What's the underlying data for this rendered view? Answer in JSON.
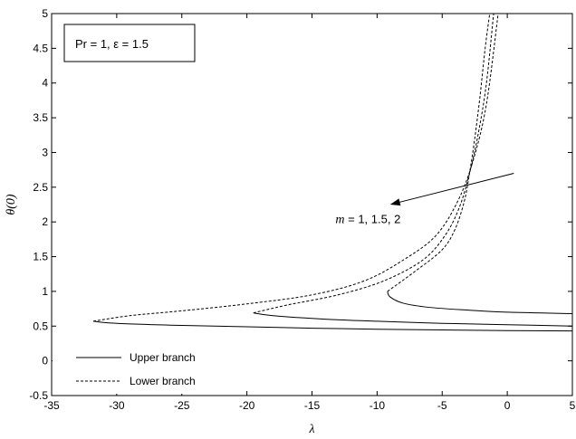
{
  "chart_data": {
    "type": "line",
    "xlabel": "λ",
    "ylabel": "θ(0)",
    "xlim": [
      -35,
      5
    ],
    "ylim": [
      -0.5,
      5
    ],
    "xticks": [
      -35,
      -30,
      -25,
      -20,
      -15,
      -10,
      -5,
      0,
      5
    ],
    "yticks": [
      -0.5,
      0,
      0.5,
      1,
      1.5,
      2,
      2.5,
      3,
      3.5,
      4,
      4.5,
      5
    ],
    "xtick_labels": [
      "-35",
      "-30",
      "-25",
      "-20",
      "-15",
      "-10",
      "-5",
      "0",
      "5"
    ],
    "ytick_labels": [
      "-0.5",
      "0",
      "0.5",
      "1",
      "1.5",
      "2",
      "2.5",
      "3",
      "3.5",
      "4",
      "4.5",
      "5"
    ],
    "grid": false,
    "legend_position": "bottom-left",
    "info_box": "Pr = 1, ε = 1.5",
    "annotation": {
      "text": "m = 1, 1.5, 2",
      "text_prefix": "m",
      "text_rest": " = 1, 1.5, 2",
      "arrow_from": [
        0.5,
        2.7
      ],
      "arrow_to": [
        -9,
        2.25
      ],
      "text_at": [
        -13.2,
        1.98
      ]
    },
    "legend": [
      {
        "label": "Upper branch",
        "style": "solid"
      },
      {
        "label": "Lower branch",
        "style": "dashed"
      }
    ],
    "series": [
      {
        "m": 1,
        "branch": "upper",
        "style": "solid",
        "points": [
          [
            -9.2,
            1.0
          ],
          [
            -9.0,
            0.92
          ],
          [
            -8.0,
            0.83
          ],
          [
            -6.0,
            0.77
          ],
          [
            -3.0,
            0.73
          ],
          [
            0.0,
            0.7
          ],
          [
            5.0,
            0.68
          ]
        ]
      },
      {
        "m": 1,
        "branch": "lower",
        "style": "dashed",
        "points": [
          [
            -9.2,
            1.0
          ],
          [
            -7.0,
            1.3
          ],
          [
            -5.0,
            1.6
          ],
          [
            -4.0,
            1.9
          ],
          [
            -3.3,
            2.3
          ],
          [
            -2.9,
            2.7
          ],
          [
            -2.5,
            3.2
          ],
          [
            -2.1,
            3.8
          ],
          [
            -1.7,
            4.5
          ],
          [
            -1.35,
            5.0
          ]
        ]
      },
      {
        "m": 1.5,
        "branch": "upper",
        "style": "solid",
        "points": [
          [
            -19.5,
            0.69
          ],
          [
            -18.0,
            0.65
          ],
          [
            -14.0,
            0.6
          ],
          [
            -10.0,
            0.57
          ],
          [
            -5.0,
            0.54
          ],
          [
            0.0,
            0.52
          ],
          [
            5.0,
            0.5
          ]
        ]
      },
      {
        "m": 1.5,
        "branch": "lower",
        "style": "dashed",
        "points": [
          [
            -19.5,
            0.69
          ],
          [
            -17.0,
            0.8
          ],
          [
            -13.0,
            0.95
          ],
          [
            -9.5,
            1.15
          ],
          [
            -6.5,
            1.45
          ],
          [
            -4.8,
            1.8
          ],
          [
            -3.7,
            2.2
          ],
          [
            -2.9,
            2.7
          ],
          [
            -2.2,
            3.3
          ],
          [
            -1.6,
            4.0
          ],
          [
            -1.05,
            5.0
          ]
        ]
      },
      {
        "m": 2,
        "branch": "upper",
        "style": "solid",
        "points": [
          [
            -31.8,
            0.57
          ],
          [
            -30.0,
            0.54
          ],
          [
            -25.0,
            0.51
          ],
          [
            -20.0,
            0.49
          ],
          [
            -15.0,
            0.47
          ],
          [
            -10.0,
            0.455
          ],
          [
            -5.0,
            0.445
          ],
          [
            0.0,
            0.435
          ],
          [
            5.0,
            0.43
          ]
        ]
      },
      {
        "m": 2,
        "branch": "lower",
        "style": "dashed",
        "points": [
          [
            -31.8,
            0.57
          ],
          [
            -29.0,
            0.65
          ],
          [
            -25.0,
            0.72
          ],
          [
            -20.0,
            0.82
          ],
          [
            -15.0,
            0.95
          ],
          [
            -11.0,
            1.15
          ],
          [
            -8.0,
            1.45
          ],
          [
            -5.5,
            1.8
          ],
          [
            -3.8,
            2.3
          ],
          [
            -2.6,
            2.9
          ],
          [
            -1.6,
            3.7
          ],
          [
            -0.7,
            5.0
          ]
        ]
      }
    ]
  }
}
